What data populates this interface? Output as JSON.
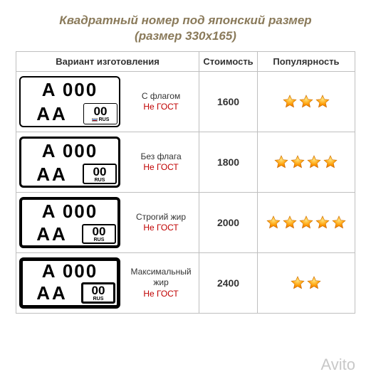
{
  "title_line1": "Квадратный номер под японский размер",
  "title_line2": "(размер 330х165)",
  "headers": {
    "variant": "Вариант изготовления",
    "cost": "Стоимость",
    "popularity": "Популярность"
  },
  "plate": {
    "top": "A 000",
    "bottom_left": "AA",
    "region_num": "00",
    "region_rus": "RUS"
  },
  "rows": [
    {
      "name": "С флагом",
      "gost": "Не ГОСТ",
      "cost": "1600",
      "stars": 3,
      "border": "b1",
      "rborder": "rb1",
      "flag": true
    },
    {
      "name": "Без флага",
      "gost": "Не ГОСТ",
      "cost": "1800",
      "stars": 4,
      "border": "b2",
      "rborder": "rb2",
      "flag": false
    },
    {
      "name": "Строгий жир",
      "gost": "Не ГОСТ",
      "cost": "2000",
      "stars": 5,
      "border": "b3",
      "rborder": "rb3",
      "flag": false
    },
    {
      "name": "Максимальный жир",
      "gost": "Не ГОСТ",
      "cost": "2400",
      "stars": 2,
      "border": "b4",
      "rborder": "rb4",
      "flag": false
    }
  ],
  "star_color_stops": [
    "#ffe27a",
    "#ff9a00",
    "#e06a00"
  ],
  "watermark": "Avito"
}
